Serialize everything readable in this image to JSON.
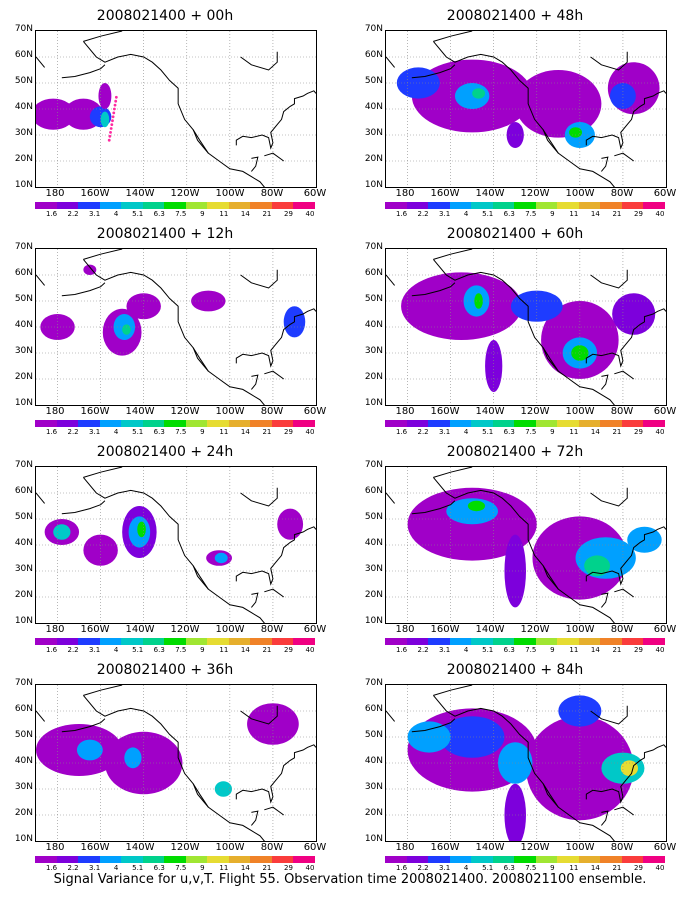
{
  "caption": "Signal Variance for u,v,T. Flight 55. Observation time 2008021400. 2008021100 ensemble.",
  "lat_labels": [
    "70N",
    "60N",
    "50N",
    "40N",
    "30N",
    "20N",
    "10N"
  ],
  "lon_labels": [
    "180",
    "160W",
    "140W",
    "120W",
    "100W",
    "80W",
    "60W"
  ],
  "colorbar": {
    "labels": [
      "1.6",
      "2.2",
      "3.1",
      "4",
      "5.1",
      "6.3",
      "7.5",
      "9",
      "11",
      "14",
      "21",
      "29",
      "40"
    ],
    "colors": [
      "#a000c8",
      "#7d00dc",
      "#1e3cff",
      "#00a0ff",
      "#00c8c8",
      "#00d28c",
      "#00dc00",
      "#a0e632",
      "#e6dc32",
      "#e6af2d",
      "#f08228",
      "#fa3c3c",
      "#f00082"
    ]
  },
  "panels": [
    {
      "title": "2008021400 + 00h",
      "lead_hours": 0
    },
    {
      "title": "2008021400 + 48h",
      "lead_hours": 48
    },
    {
      "title": "2008021400 + 12h",
      "lead_hours": 12
    },
    {
      "title": "2008021400 + 60h",
      "lead_hours": 60
    },
    {
      "title": "2008021400 + 24h",
      "lead_hours": 24
    },
    {
      "title": "2008021400 + 72h",
      "lead_hours": 72
    },
    {
      "title": "2008021400 + 36h",
      "lead_hours": 36
    },
    {
      "title": "2008021400 + 84h",
      "lead_hours": 84
    }
  ]
}
